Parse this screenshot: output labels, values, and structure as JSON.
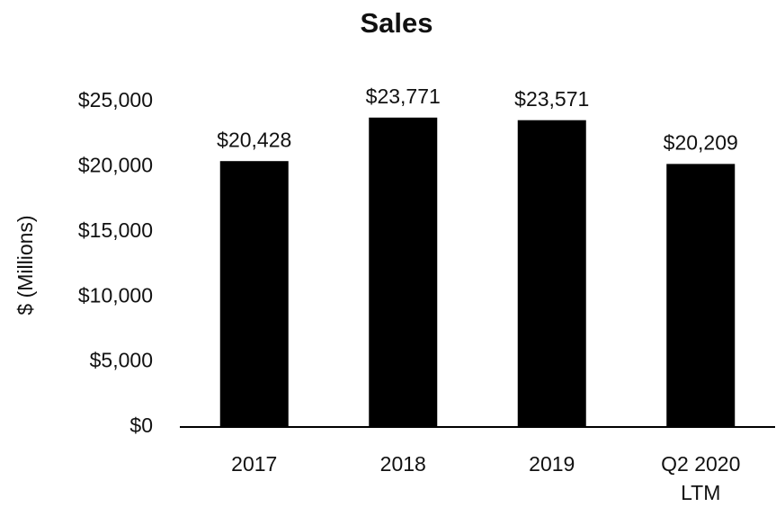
{
  "chart_data": {
    "type": "bar",
    "title": "Sales",
    "y_label": "$ (Millions)",
    "categories": [
      "2017",
      "2018",
      "2019",
      "Q2 2020 LTM"
    ],
    "values": [
      20428,
      23771,
      23571,
      20209
    ],
    "value_labels": [
      "$20,428",
      "$23,771",
      "$23,571",
      "$20,209"
    ],
    "color": "#000000",
    "ylim": [
      0,
      25000
    ],
    "yticks": [
      {
        "value": 0,
        "label": "$0"
      },
      {
        "value": 5000,
        "label": "$5,000"
      },
      {
        "value": 10000,
        "label": "$10,000"
      },
      {
        "value": 15000,
        "label": "$15,000"
      },
      {
        "value": 20000,
        "label": "$20,000"
      },
      {
        "value": 25000,
        "label": "$25,000"
      }
    ],
    "grid": false
  }
}
